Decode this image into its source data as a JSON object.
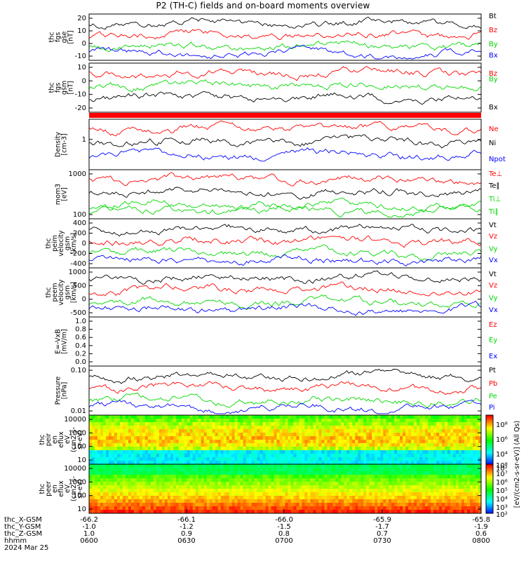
{
  "title": "P2 (TH-C) fields and on-board moments overview",
  "colors": {
    "black": "#000000",
    "red": "#ff0000",
    "green": "#00d800",
    "blue": "#0000ff"
  },
  "chart_data": [
    {
      "type": "line",
      "ylabel": [
        "thc",
        "fgs",
        "gse",
        "[nT]"
      ],
      "yticks": [
        "20",
        "10",
        "0",
        "-10"
      ],
      "ylim": [
        -17,
        22
      ],
      "series": [
        {
          "name": "Bt",
          "color": "black"
        },
        {
          "name": "Bz",
          "color": "red"
        },
        {
          "name": "By",
          "color": "green"
        },
        {
          "name": "Bx",
          "color": "blue"
        }
      ]
    },
    {
      "type": "line",
      "ylabel": [
        "thc",
        "fgs",
        "gsm",
        "[nT]"
      ],
      "yticks": [
        "10",
        "0",
        "-10",
        "-20"
      ],
      "ylim": [
        -25,
        13
      ],
      "series": [
        {
          "name": "Bz",
          "color": "red"
        },
        {
          "name": "By",
          "color": "green"
        },
        {
          "name": "Bx",
          "color": "black"
        }
      ]
    },
    {
      "type": "line",
      "ylabel": [
        "Density",
        "[cm-3]"
      ],
      "yticks": [
        "1"
      ],
      "scale": "log",
      "series": [
        {
          "name": "Ne",
          "color": "red"
        },
        {
          "name": "Ni",
          "color": "black"
        },
        {
          "name": "Npot",
          "color": "blue"
        }
      ]
    },
    {
      "type": "line",
      "ylabel": [
        "mom3",
        "[eV]"
      ],
      "yticks": [
        "1000",
        "100"
      ],
      "scale": "log",
      "series": [
        {
          "name": "Te⊥",
          "color": "red"
        },
        {
          "name": "Te∥",
          "color": "black"
        },
        {
          "name": "Ti⊥",
          "color": "green"
        },
        {
          "name": "Ti∥",
          "color": "green"
        }
      ]
    },
    {
      "type": "line",
      "ylabel": [
        "thc",
        "peim",
        "velocity",
        "gsm",
        "[km/s]"
      ],
      "yticks": [
        "400",
        "200",
        "0",
        "-200",
        "-400"
      ],
      "ylim": [
        -420,
        450
      ],
      "series": [
        {
          "name": "Vt",
          "color": "black"
        },
        {
          "name": "Vz",
          "color": "red"
        },
        {
          "name": "Vy",
          "color": "green"
        },
        {
          "name": "Vx",
          "color": "blue"
        }
      ]
    },
    {
      "type": "line",
      "ylabel": [
        "thc",
        "peem",
        "velocity",
        "gsm",
        "[km/s]"
      ],
      "yticks": [
        "1000",
        "500",
        "0",
        "-500"
      ],
      "ylim": [
        -600,
        1500
      ],
      "series": [
        {
          "name": "Vt",
          "color": "black"
        },
        {
          "name": "Vz",
          "color": "red"
        },
        {
          "name": "Vy",
          "color": "green"
        },
        {
          "name": "Vx",
          "color": "blue"
        }
      ]
    },
    {
      "type": "line",
      "ylabel": [
        "E=-VxB",
        "[mV/m]"
      ],
      "yticks": [
        "1.0",
        "0.8",
        "0.6",
        "0.4",
        "0.2",
        "0.0"
      ],
      "ylim": [
        0,
        1
      ],
      "series": [
        {
          "name": "Ez",
          "color": "red"
        },
        {
          "name": "Ey",
          "color": "green"
        },
        {
          "name": "Ex",
          "color": "blue"
        }
      ]
    },
    {
      "type": "line",
      "ylabel": [
        "Pressure",
        "[nPa]"
      ],
      "yticks": [
        "0.10",
        "0.01"
      ],
      "scale": "log",
      "series": [
        {
          "name": "Pt",
          "color": "black"
        },
        {
          "name": "Pb",
          "color": "red"
        },
        {
          "name": "Pe",
          "color": "green"
        },
        {
          "name": "Pi",
          "color": "blue"
        }
      ]
    },
    {
      "type": "heatmap",
      "ylabel": [
        "thc",
        "peir",
        "en",
        "eflux",
        "eV",
        "(cm2-s-",
        "sr-eV)"
      ],
      "yticks": [
        "10000",
        "1000",
        "100",
        "10"
      ],
      "scale": "log"
    },
    {
      "type": "heatmap",
      "ylabel": [
        "thc",
        "peer",
        "en",
        "eflux",
        "eV",
        "(cm2-s-",
        "sr-eV)"
      ],
      "yticks": [
        "10000",
        "1000",
        "100",
        "10"
      ],
      "scale": "log"
    }
  ],
  "colorbar": {
    "ticks": [
      "10⁸",
      "10⁶",
      "10⁴",
      "10²",
      "10⁸",
      "10⁷",
      "10⁶",
      "10⁵",
      "10⁴",
      "10³",
      "10²"
    ],
    "label": "[eV/(cm2-s-sr-eV)]  (All Qs)"
  },
  "xaxis": {
    "rows": [
      {
        "label": "thc_X-GSM",
        "values": [
          "-66.2",
          "-66.1",
          "-66.0",
          "-65.9",
          "-65.8"
        ]
      },
      {
        "label": "thc_Y-GSM",
        "values": [
          "-1.0",
          "-1.2",
          "-1.5",
          "-1.7",
          "-1.9"
        ]
      },
      {
        "label": "thc_Z-GSM",
        "values": [
          "1.0",
          "0.9",
          "0.8",
          "0.7",
          "0.6"
        ]
      },
      {
        "label": "hhmm",
        "values": [
          "0600",
          "0630",
          "0700",
          "0730",
          "0800"
        ]
      }
    ],
    "date": "2024 Mar 25"
  }
}
